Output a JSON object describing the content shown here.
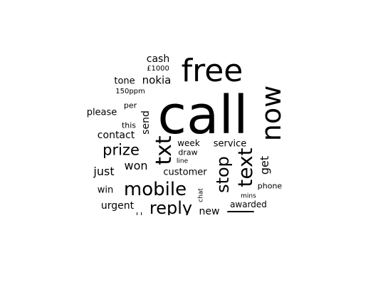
{
  "words": {
    "call": "call",
    "free": "free",
    "now": "now",
    "txt": "txt",
    "text": "text",
    "stop": "stop",
    "mobile": "mobile",
    "reply": "reply",
    "prize": "prize",
    "just": "just",
    "won": "won",
    "cash": "cash",
    "pound1000": "£1000",
    "nokia": "nokia",
    "tone": "tone",
    "ppm150": "150ppm",
    "per": "per",
    "please": "please",
    "this": "this",
    "send": "send",
    "contact": "contact",
    "week": "week",
    "draw": "draw",
    "line": "line",
    "service": "service",
    "get": "get",
    "customer": "customer",
    "win": "win",
    "chat": "chat",
    "mins": "mins",
    "phone": "phone",
    "urgent": "urgent",
    "new": "new",
    "awarded": "awarded"
  }
}
